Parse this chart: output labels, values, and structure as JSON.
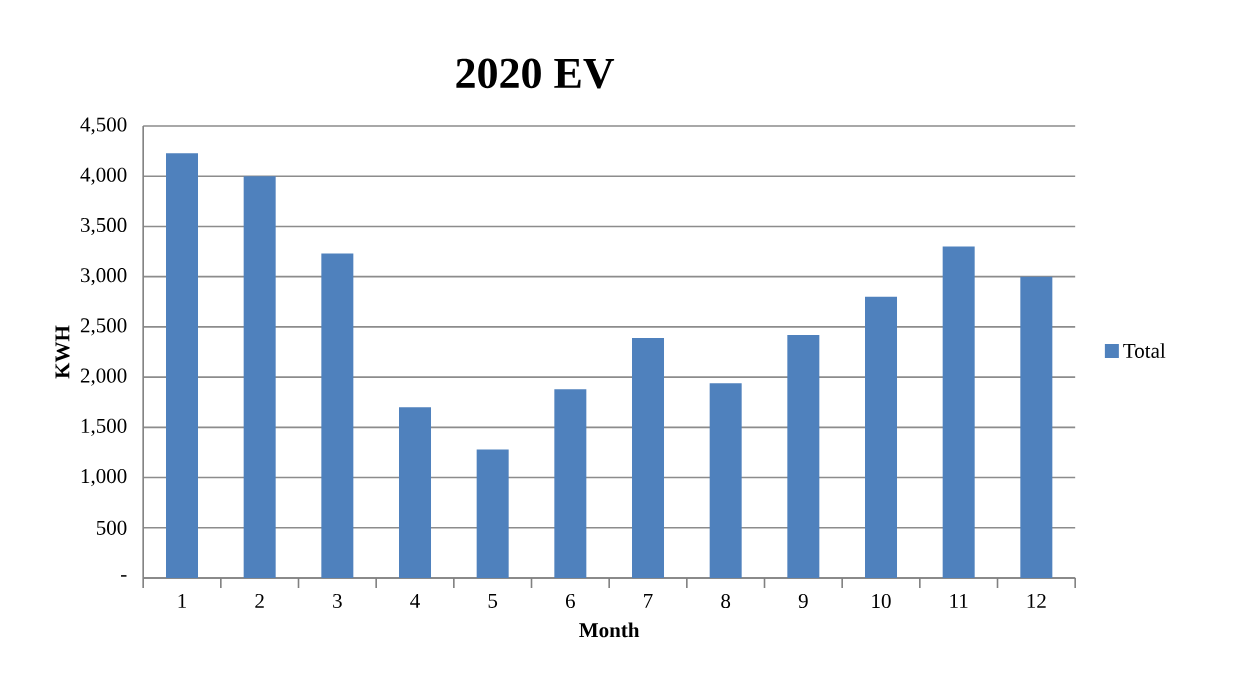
{
  "chart_data": {
    "type": "bar",
    "title": "2020 EV",
    "xlabel": "Month",
    "ylabel": "KWH",
    "categories": [
      "1",
      "2",
      "3",
      "4",
      "5",
      "6",
      "7",
      "8",
      "9",
      "10",
      "11",
      "12"
    ],
    "series": [
      {
        "name": "Total",
        "color": "#4f81bd",
        "values": [
          4230,
          4000,
          3230,
          1700,
          1280,
          1880,
          2390,
          1940,
          2420,
          2800,
          3300,
          3000
        ]
      }
    ],
    "ylim": [
      0,
      4500
    ],
    "yticks": [
      {
        "value": 0,
        "label": "-"
      },
      {
        "value": 500,
        "label": "500"
      },
      {
        "value": 1000,
        "label": "1,000"
      },
      {
        "value": 1500,
        "label": "1,500"
      },
      {
        "value": 2000,
        "label": "2,000"
      },
      {
        "value": 2500,
        "label": "2,500"
      },
      {
        "value": 3000,
        "label": "3,000"
      },
      {
        "value": 3500,
        "label": "3,500"
      },
      {
        "value": 4000,
        "label": "4,000"
      },
      {
        "value": 4500,
        "label": "4,500"
      }
    ],
    "grid": "y",
    "legend": "right"
  }
}
